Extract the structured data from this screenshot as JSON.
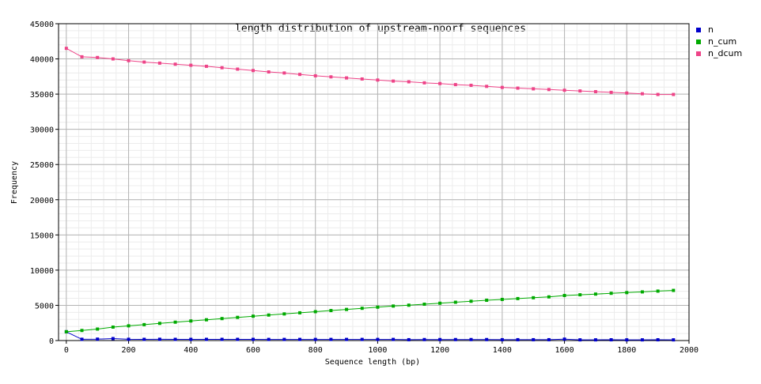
{
  "chart_data": {
    "type": "line",
    "title": "length distribution of upstream-noorf sequences",
    "xlabel": "Sequence length (bp)",
    "ylabel": "Frequency",
    "xlim": [
      -25,
      2000
    ],
    "ylim": [
      0,
      45000
    ],
    "x_ticks": [
      0,
      200,
      400,
      600,
      800,
      1000,
      1200,
      1400,
      1600,
      1800,
      2000
    ],
    "y_ticks": [
      0,
      5000,
      10000,
      15000,
      20000,
      25000,
      30000,
      35000,
      40000,
      45000
    ],
    "grid": true,
    "legend_position": "right",
    "x": [
      0,
      50,
      100,
      150,
      200,
      250,
      300,
      350,
      400,
      450,
      500,
      550,
      600,
      650,
      700,
      750,
      800,
      850,
      900,
      950,
      1000,
      1050,
      1100,
      1150,
      1200,
      1250,
      1300,
      1350,
      1400,
      1450,
      1500,
      1550,
      1600,
      1650,
      1700,
      1750,
      1800,
      1850,
      1900,
      1950
    ],
    "series": [
      {
        "name": "n",
        "color": "#0000cc",
        "values": [
          1250,
          180,
          200,
          280,
          180,
          170,
          180,
          170,
          170,
          170,
          170,
          170,
          170,
          160,
          160,
          160,
          160,
          160,
          160,
          160,
          160,
          160,
          120,
          140,
          140,
          140,
          140,
          140,
          120,
          120,
          120,
          120,
          200,
          100,
          100,
          110,
          100,
          100,
          110,
          100
        ]
      },
      {
        "name": "n_cum",
        "color": "#00aa00",
        "values": [
          1250,
          1430,
          1630,
          1910,
          2090,
          2260,
          2440,
          2610,
          2780,
          2950,
          3120,
          3290,
          3460,
          3620,
          3780,
          3940,
          4100,
          4260,
          4420,
          4580,
          4740,
          4900,
          5020,
          5160,
          5300,
          5440,
          5580,
          5720,
          5840,
          5960,
          6080,
          6200,
          6400,
          6500,
          6600,
          6710,
          6810,
          6910,
          7020,
          7120
        ]
      },
      {
        "name": "n_dcum",
        "color": "#ee4488",
        "values": [
          41500,
          40300,
          40200,
          40000,
          39750,
          39550,
          39400,
          39250,
          39100,
          38950,
          38750,
          38550,
          38350,
          38150,
          38000,
          37800,
          37600,
          37450,
          37300,
          37150,
          37000,
          36850,
          36750,
          36600,
          36500,
          36350,
          36250,
          36100,
          35950,
          35850,
          35750,
          35650,
          35550,
          35450,
          35350,
          35250,
          35150,
          35050,
          34950,
          34950
        ]
      }
    ]
  }
}
